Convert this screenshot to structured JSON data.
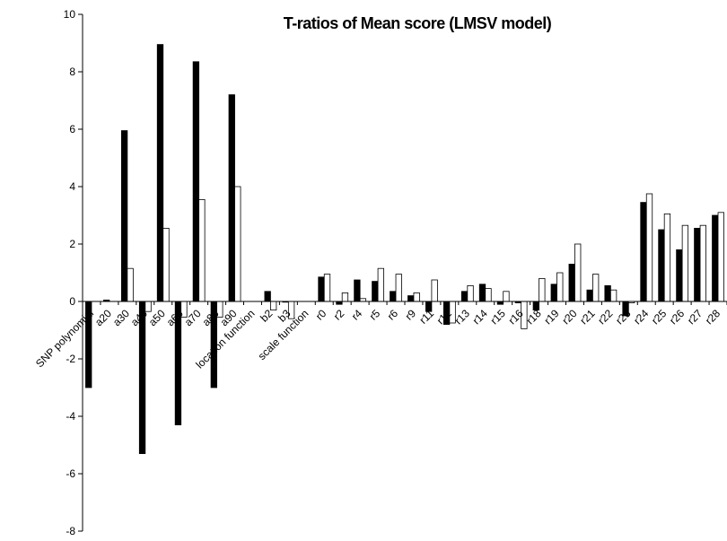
{
  "chart_data": {
    "type": "bar",
    "title": "T-ratios of Mean score (LMSV model)",
    "xlabel": "",
    "ylabel": "",
    "ylim": [
      -8,
      10
    ],
    "yticks": [
      -8,
      -6,
      -4,
      -2,
      0,
      2,
      4,
      6,
      8,
      10
    ],
    "grid": false,
    "legend": "none",
    "categories": [
      "SNP polynomial",
      "a20",
      "a30",
      "a40",
      "a50",
      "a60",
      "a70",
      "a80",
      "a90",
      "location function",
      "b2",
      "b3",
      "scale function",
      "r0",
      "r2",
      "r4",
      "r5",
      "r6",
      "r9",
      "r11",
      "r12",
      "r13",
      "r14",
      "r15",
      "r16",
      "r18",
      "r19",
      "r20",
      "r21",
      "r22",
      "r23",
      "r24",
      "r25",
      "r26",
      "r27",
      "r28"
    ],
    "series": [
      {
        "fill": "#000000",
        "values": [
          -3.0,
          0.05,
          5.95,
          -5.3,
          8.95,
          -4.3,
          8.35,
          -3.0,
          7.2,
          null,
          0.35,
          0.0,
          null,
          0.85,
          -0.1,
          0.75,
          0.7,
          0.35,
          0.2,
          -0.35,
          -0.8,
          0.35,
          0.6,
          -0.1,
          -0.05,
          -0.3,
          0.6,
          1.3,
          0.4,
          0.55,
          -0.5,
          3.45,
          2.5,
          1.8,
          2.55,
          3.0
        ]
      },
      {
        "fill": "#ffffff",
        "values": [
          null,
          null,
          1.15,
          -0.35,
          2.55,
          -0.55,
          3.55,
          -0.55,
          4.0,
          null,
          -0.3,
          -0.6,
          null,
          0.95,
          0.3,
          0.1,
          1.15,
          0.95,
          0.3,
          0.75,
          -0.75,
          0.55,
          0.45,
          0.35,
          -0.95,
          0.8,
          1.0,
          2.0,
          0.95,
          0.4,
          -0.05,
          3.75,
          3.05,
          2.65,
          2.65,
          3.1
        ]
      }
    ]
  }
}
